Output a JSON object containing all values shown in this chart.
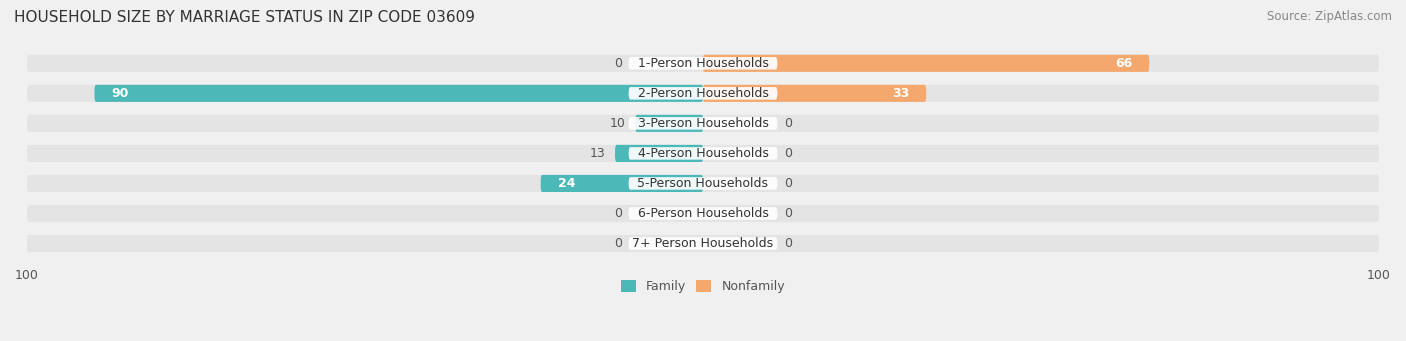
{
  "title": "HOUSEHOLD SIZE BY MARRIAGE STATUS IN ZIP CODE 03609",
  "source": "Source: ZipAtlas.com",
  "categories": [
    "7+ Person Households",
    "6-Person Households",
    "5-Person Households",
    "4-Person Households",
    "3-Person Households",
    "2-Person Households",
    "1-Person Households"
  ],
  "family_values": [
    0,
    0,
    24,
    13,
    10,
    90,
    0
  ],
  "nonfamily_values": [
    0,
    0,
    0,
    0,
    0,
    33,
    66
  ],
  "family_color": "#4db8b8",
  "nonfamily_color": "#f5a86e",
  "axis_limit": 100,
  "bg_color": "#f0f0f0",
  "bar_bg_color": "#e8e8e8",
  "bar_height": 0.55,
  "label_fontsize": 9,
  "title_fontsize": 11,
  "source_fontsize": 8.5
}
